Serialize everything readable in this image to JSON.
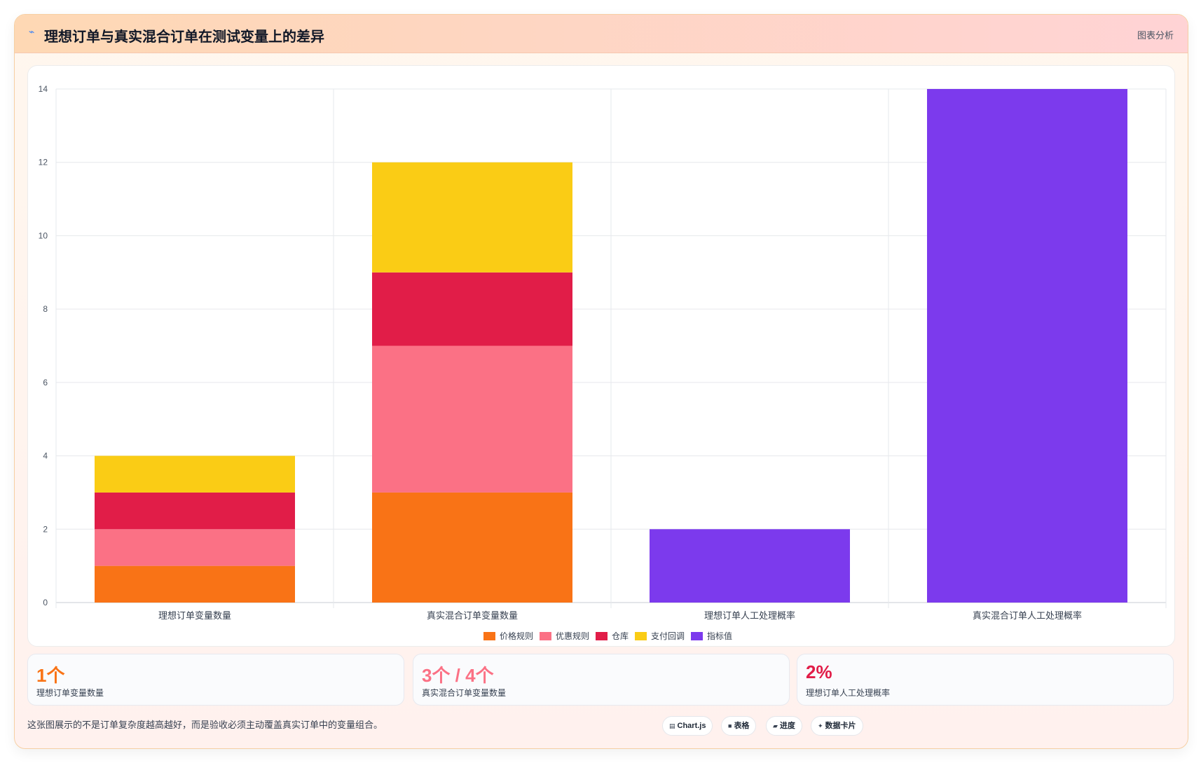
{
  "header": {
    "icon": "chart-icon",
    "title": "理想订单与真实混合订单在测试变量上的差异",
    "tag": "图表分析"
  },
  "chart_data": {
    "type": "bar",
    "stacked": true,
    "categories": [
      "理想订单变量数量",
      "真实混合订单变量数量",
      "理想订单人工处理概率",
      "真实混合订单人工处理概率"
    ],
    "series": [
      {
        "name": "价格规则",
        "color": "#f97316",
        "values": [
          1,
          3,
          0,
          0
        ]
      },
      {
        "name": "优惠规则",
        "color": "#fb7185",
        "values": [
          1,
          4,
          0,
          0
        ]
      },
      {
        "name": "仓库",
        "color": "#e11d48",
        "values": [
          1,
          2,
          0,
          0
        ]
      },
      {
        "name": "支付回调",
        "color": "#facc15",
        "values": [
          1,
          3,
          0,
          0
        ]
      },
      {
        "name": "指标值",
        "color": "#7c3aed",
        "values": [
          0,
          0,
          2,
          14
        ]
      }
    ],
    "ylim": [
      0,
      14
    ],
    "yticks": [
      0,
      2,
      4,
      6,
      8,
      10,
      12,
      14
    ],
    "grid": true,
    "legend": "bottom"
  },
  "stats": [
    {
      "value": "1个",
      "label": "理想订单变量数量",
      "color": "#f97316"
    },
    {
      "value": "3个 / 4个",
      "label": "真实混合订单变量数量",
      "color": "#fb7185"
    },
    {
      "value": "2%",
      "label": "理想订单人工处理概率",
      "color": "#e11d48"
    }
  ],
  "footer": {
    "note": "这张图展示的不是订单复杂度越高越好，而是验收必须主动覆盖真实订单中的变量组合。",
    "chips": [
      {
        "icon": "chart-js-icon",
        "glyph": "▤",
        "label": "Chart.js"
      },
      {
        "icon": "table-icon",
        "glyph": "■",
        "label": "表格"
      },
      {
        "icon": "progress-icon",
        "glyph": "▰",
        "label": "进度"
      },
      {
        "icon": "data-card-icon",
        "glyph": "✦",
        "label": "数据卡片"
      }
    ]
  }
}
